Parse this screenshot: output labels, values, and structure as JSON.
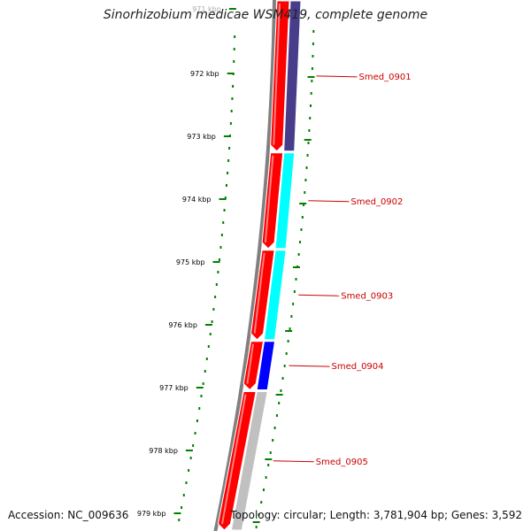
{
  "title": "Sinorhizobium medicae WSM419, complete genome",
  "footer": {
    "accession": "Accession: NC_009636",
    "topology": "Topology: circular; Length: 3,781,904 bp; Genes: 3,592"
  },
  "ruler": {
    "unit": "kbp",
    "ticks": [
      "971 kbp",
      "972 kbp",
      "973 kbp",
      "974 kbp",
      "975 kbp",
      "976 kbp",
      "977 kbp",
      "978 kbp",
      "979 kbp"
    ]
  },
  "colors": {
    "backbone": "#808080",
    "forward_gene": "#ff0000",
    "reverse_track_cyan": "#00ffff",
    "reverse_track_blue": "#0000ff",
    "reverse_track_navy": "#483d8b",
    "reverse_track_gray": "#c0c0c0",
    "gc_tick": "#008000",
    "label": "#cc0000"
  },
  "genes": [
    {
      "label": "Smed_0901",
      "start_kbp": 970.8,
      "end_kbp": 973.25,
      "track_color": "#483d8b"
    },
    {
      "label": "Smed_0902",
      "start_kbp": 973.25,
      "end_kbp": 974.8,
      "track_color": "#00ffff"
    },
    {
      "label": "Smed_0903",
      "start_kbp": 974.8,
      "end_kbp": 976.25,
      "track_color": "#00ffff"
    },
    {
      "label": "Smed_0904",
      "start_kbp": 976.25,
      "end_kbp": 977.05,
      "track_color": "#0000ff"
    },
    {
      "label": "Smed_0905",
      "start_kbp": 977.05,
      "end_kbp": 979.3,
      "track_color": "#c0c0c0"
    }
  ]
}
